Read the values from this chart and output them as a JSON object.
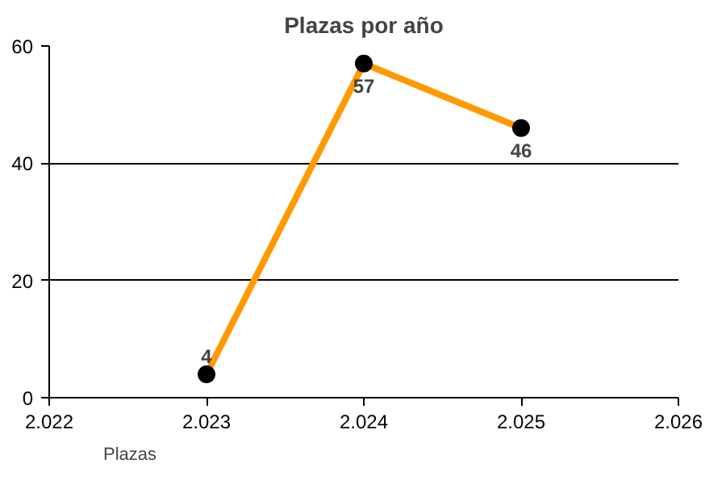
{
  "chart_data": {
    "type": "line",
    "title": "Plazas por año",
    "x": [
      2023,
      2024,
      2025
    ],
    "series": [
      {
        "name": "Plazas",
        "color": "#ff9900",
        "values": [
          4,
          57,
          46
        ]
      }
    ],
    "xlim": [
      2022,
      2026
    ],
    "xticks": [
      {
        "value": 2022,
        "label": "2.022"
      },
      {
        "value": 2023,
        "label": "2.023"
      },
      {
        "value": 2024,
        "label": "2.024"
      },
      {
        "value": 2025,
        "label": "2.025"
      },
      {
        "value": 2026,
        "label": "2.026"
      }
    ],
    "ylim": [
      0,
      60
    ],
    "yticks": [
      0,
      20,
      40,
      60
    ],
    "grid": "y",
    "legend": "bottom left",
    "marker": "circle",
    "line_style": "solid",
    "data_labels": true
  }
}
